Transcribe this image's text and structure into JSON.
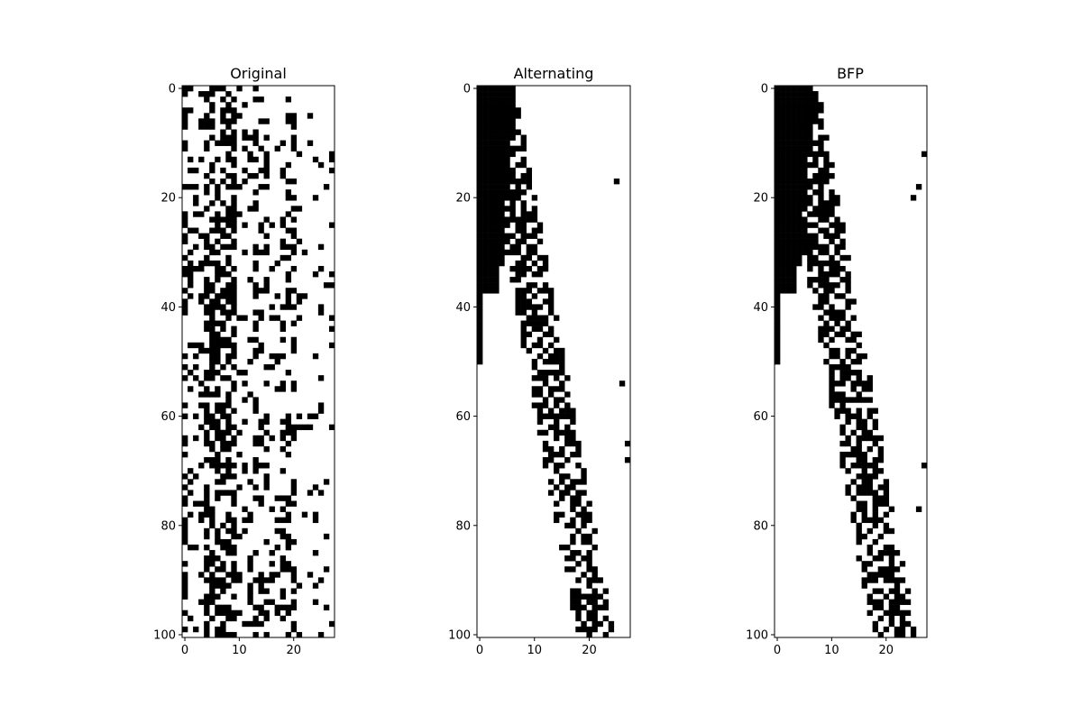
{
  "chart_data": [
    {
      "type": "heatmap",
      "title": "Original",
      "colormap": {
        "0": "#ffffff",
        "1": "#000000"
      },
      "shape": {
        "rows": 101,
        "cols": 28
      },
      "xlim": [
        -0.5,
        27.5
      ],
      "ylim": [
        100.5,
        -0.5
      ],
      "x_ticks": [
        0,
        10,
        20
      ],
      "y_ticks": [
        0,
        20,
        40,
        60,
        80,
        100
      ],
      "cells": [
        [
          [
            0,
            0
          ],
          [
            1,
            6
          ],
          [
            7,
            7
          ],
          [
            8,
            8
          ],
          [
            9,
            9
          ],
          [
            10,
            10
          ],
          [
            11,
            11
          ],
          [
            12,
            12
          ],
          [
            13,
            13
          ],
          [
            14,
            14
          ],
          [
            15,
            15
          ],
          [
            16,
            16
          ],
          [
            17,
            17
          ],
          [
            18,
            18
          ],
          [
            19,
            19
          ],
          [
            20,
            20
          ],
          [
            21,
            21
          ],
          [
            22,
            22
          ],
          [
            23,
            23
          ],
          [
            24,
            24
          ],
          [
            25,
            25
          ],
          [
            26,
            26
          ],
          [
            27,
            27
          ],
          [
            28,
            28
          ],
          [
            29,
            29
          ],
          [
            30,
            30
          ],
          [
            31,
            31
          ],
          [
            32,
            32
          ],
          [
            33,
            33
          ],
          [
            34,
            34
          ],
          [
            35,
            35
          ],
          [
            36,
            36
          ],
          [
            37,
            37
          ],
          [
            38,
            38
          ],
          [
            39,
            39
          ],
          [
            40,
            40
          ],
          [
            41,
            41
          ],
          [
            42,
            42
          ],
          [
            43,
            43
          ],
          [
            44,
            44
          ],
          [
            45,
            45
          ],
          [
            46,
            46
          ],
          [
            47,
            47
          ],
          [
            48,
            48
          ],
          [
            49,
            49
          ],
          [
            50,
            50
          ],
          [
            51,
            51
          ],
          [
            52,
            52
          ],
          [
            53,
            53
          ],
          [
            54,
            54
          ],
          [
            55,
            55
          ],
          [
            56,
            56
          ],
          [
            57,
            57
          ],
          [
            58,
            58
          ],
          [
            59,
            59
          ],
          [
            60,
            60
          ],
          [
            61,
            61
          ],
          [
            62,
            62
          ],
          [
            63,
            63
          ],
          [
            64,
            64
          ],
          [
            65,
            65
          ],
          [
            66,
            66
          ],
          [
            67,
            67
          ],
          [
            68,
            68
          ],
          [
            69,
            69
          ],
          [
            70,
            70
          ],
          [
            71,
            71
          ],
          [
            72,
            72
          ],
          [
            73,
            73
          ],
          [
            74,
            74
          ],
          [
            75,
            75
          ],
          [
            76,
            76
          ],
          [
            77,
            77
          ],
          [
            78,
            78
          ],
          [
            79,
            79
          ],
          [
            80,
            80
          ],
          [
            81,
            81
          ],
          [
            82,
            82
          ],
          [
            83,
            83
          ],
          [
            84,
            84
          ],
          [
            85,
            85
          ],
          [
            86,
            86
          ],
          [
            87,
            87
          ],
          [
            88,
            88
          ],
          [
            89,
            89
          ],
          [
            90,
            90
          ],
          [
            91,
            91
          ],
          [
            92,
            92
          ],
          [
            93,
            93
          ],
          [
            94,
            94
          ],
          [
            95,
            95
          ],
          [
            96,
            96
          ],
          [
            97,
            97
          ],
          [
            98,
            98
          ],
          [
            99,
            99
          ],
          [
            100,
            100
          ]
        ]
      ]
    },
    {
      "type": "heatmap",
      "title": "Alternating",
      "colormap": {
        "0": "#ffffff",
        "1": "#000000"
      },
      "shape": {
        "rows": 101,
        "cols": 28
      },
      "xlim": [
        -0.5,
        27.5
      ],
      "ylim": [
        100.5,
        -0.5
      ],
      "x_ticks": [
        0,
        10,
        20
      ],
      "y_ticks": [
        0,
        20,
        40,
        60,
        80,
        100
      ]
    },
    {
      "type": "heatmap",
      "title": "BFP",
      "colormap": {
        "0": "#ffffff",
        "1": "#000000"
      },
      "shape": {
        "rows": 101,
        "cols": 28
      },
      "xlim": [
        -0.5,
        27.5
      ],
      "ylim": [
        100.5,
        -0.5
      ],
      "x_ticks": [
        0,
        10,
        20
      ],
      "y_ticks": [
        0,
        20,
        40,
        60,
        80,
        100
      ]
    }
  ]
}
